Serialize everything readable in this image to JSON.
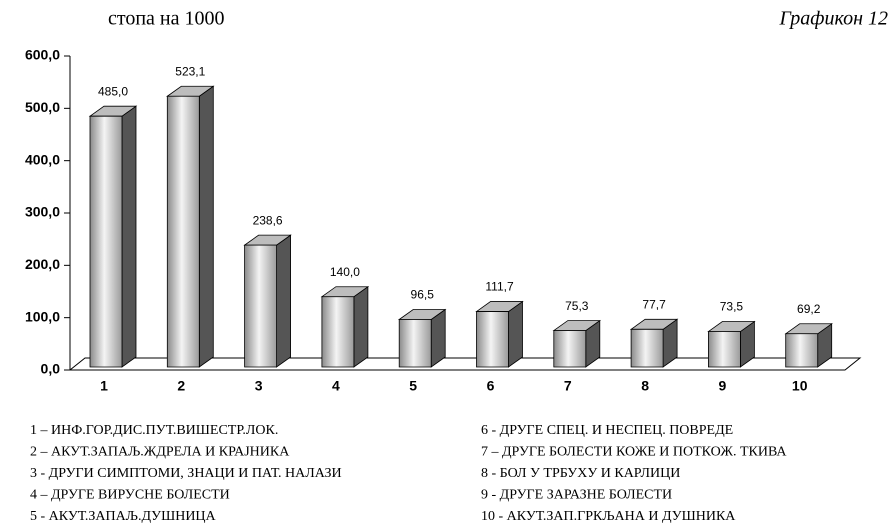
{
  "chart_data": {
    "type": "bar3d",
    "subtitle": "стопа на 1000",
    "title": "Графикон 12",
    "categories": [
      "1",
      "2",
      "3",
      "4",
      "5",
      "6",
      "7",
      "8",
      "9",
      "10"
    ],
    "values": [
      485.0,
      523.1,
      238.6,
      140.0,
      96.5,
      111.7,
      75.3,
      77.7,
      73.5,
      69.2
    ],
    "value_labels": [
      "485,0",
      "523,1",
      "238,6",
      "140,0",
      "96,5",
      "111,7",
      "75,3",
      "77,7",
      "73,5",
      "69,2"
    ],
    "ylim": [
      0,
      600
    ],
    "yticks": [
      {
        "value": 0,
        "label": "0,0"
      },
      {
        "value": 100,
        "label": "100,0"
      },
      {
        "value": 200,
        "label": "200,0"
      },
      {
        "value": 300,
        "label": "300,0"
      },
      {
        "value": 400,
        "label": "400,0"
      },
      {
        "value": 500,
        "label": "500,0"
      },
      {
        "value": 600,
        "label": "600,0"
      }
    ],
    "legend_items": [
      "1 – ИНФ.ГОР.ДИС.ПУТ.ВИШЕСТР.ЛОК.",
      "2 – АКУТ.ЗАПАЉ.ЖДРЕЛА И КРАЈНИКА",
      "3 - ДРУГИ СИМПТОМИ, ЗНАЦИ И ПАТ. НАЛАЗИ",
      "4 – ДРУГЕ ВИРУСНЕ БОЛЕСТИ",
      "5 - АКУТ.ЗАПАЉ.ДУШНИЦА",
      "6 - ДРУГЕ СПЕЦ. И НЕСПЕЦ. ПОВРЕДЕ",
      "7 – ДРУГЕ БОЛЕСТИ КОЖЕ И ПОТКОЖ. ТКИВА",
      "8 - БОЛ У ТРБУХУ И КАРЛИЦИ",
      "9 - ДРУГЕ ЗАРАЗНЕ БОЛЕСТИ",
      "10 - АКУТ.ЗАП.ГРКЉАНА И ДУШНИКА"
    ]
  }
}
